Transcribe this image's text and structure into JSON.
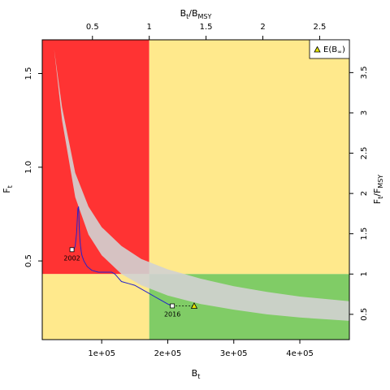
{
  "chart_data": {
    "type": "line",
    "title": "",
    "axes": {
      "bottom": {
        "label_base": "B",
        "label_sub": "t",
        "lim": [
          10000,
          475000
        ],
        "ticks": [
          100000,
          200000,
          300000,
          400000
        ],
        "tick_labels": [
          "1e+05",
          "2e+05",
          "3e+05",
          "4e+05"
        ]
      },
      "left": {
        "label_base": "F",
        "label_sub": "t",
        "lim": [
          0.08,
          1.68
        ],
        "ticks": [
          0.5,
          1.0,
          1.5
        ],
        "tick_labels": [
          "0.5",
          "1.0",
          "1.5"
        ]
      },
      "top": {
        "label_base": "B",
        "label_sub": "t",
        "label_sep": "/",
        "label_base2": "B",
        "label_sub2": "MSY",
        "ticks_data": [
          86000,
          172000,
          258000,
          344000,
          430000
        ],
        "tick_labels": [
          "0.5",
          "1",
          "1.5",
          "2",
          "2.5"
        ]
      },
      "right": {
        "label_base": "F",
        "label_sub": "t",
        "label_sep": "/",
        "label_base2": "F",
        "label_sub2": "MSY",
        "ticks_data": [
          0.215,
          0.43,
          0.645,
          0.86,
          1.075,
          1.29,
          1.505
        ],
        "tick_labels": [
          "0.5",
          "1",
          "1.5",
          "2",
          "2.5",
          "3",
          "3.5"
        ]
      }
    },
    "reference": {
      "b_msy_data": 172000,
      "f_msy_data": 0.43
    },
    "zone_colors": {
      "red": "#ff3333",
      "yellow": "#ffe98c",
      "green": "#80cc66"
    },
    "band": {
      "color": "#d2d2d2",
      "x": [
        28000,
        40000,
        60000,
        80000,
        100000,
        130000,
        160000,
        200000,
        250000,
        300000,
        350000,
        400000,
        475000
      ],
      "upper": [
        1.63,
        1.32,
        0.97,
        0.79,
        0.68,
        0.58,
        0.51,
        0.455,
        0.405,
        0.365,
        0.335,
        0.31,
        0.285
      ],
      "lower": [
        1.63,
        1.25,
        0.84,
        0.64,
        0.53,
        0.43,
        0.37,
        0.315,
        0.27,
        0.24,
        0.215,
        0.198,
        0.18
      ]
    },
    "series": [
      {
        "color": "#2222cc",
        "x": [
          55000,
          58000,
          60000,
          62000,
          63000,
          64000,
          65000,
          65500,
          66000,
          67000,
          68000,
          69000,
          70000,
          73000,
          78000,
          85000,
          95000,
          105000,
          115000,
          120000,
          125000,
          130000,
          140000,
          150000,
          160000,
          170000,
          180000,
          190000,
          200000,
          207000
        ],
        "y": [
          0.56,
          0.56,
          0.58,
          0.65,
          0.72,
          0.78,
          0.79,
          0.74,
          0.68,
          0.62,
          0.58,
          0.55,
          0.53,
          0.5,
          0.47,
          0.45,
          0.44,
          0.44,
          0.44,
          0.43,
          0.41,
          0.39,
          0.38,
          0.37,
          0.35,
          0.33,
          0.31,
          0.29,
          0.27,
          0.26
        ]
      }
    ],
    "points": [
      {
        "label": "2002",
        "x": 55000,
        "y": 0.56
      },
      {
        "label": "2016",
        "x": 207000,
        "y": 0.26
      }
    ],
    "projection": {
      "from_x": 207000,
      "to_x": 240000,
      "y": 0.26
    },
    "expected_point": {
      "x": 240000,
      "y": 0.26
    },
    "legend": {
      "symbol": "triangle",
      "label_base": "E(B",
      "label_sub": "∞",
      "label_end": ")",
      "position": "top-right"
    }
  }
}
